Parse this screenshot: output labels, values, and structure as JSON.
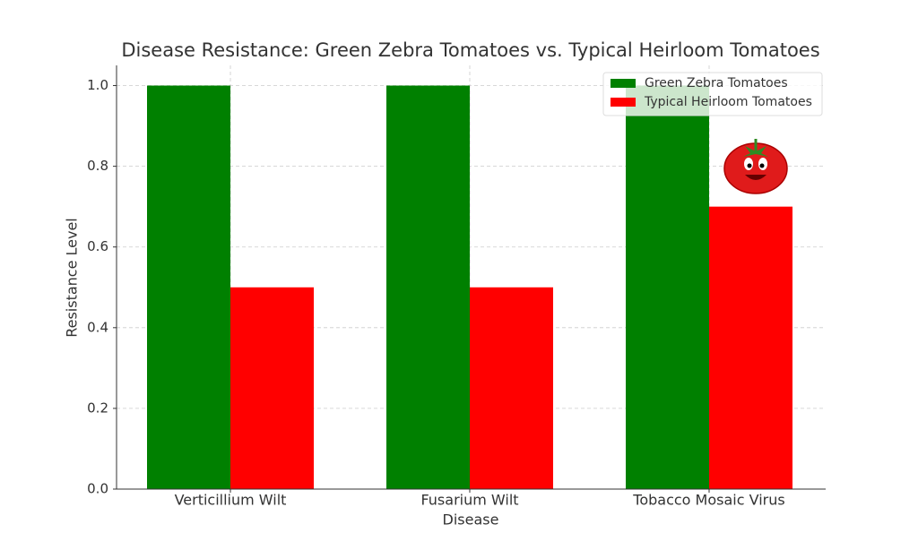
{
  "chart_data": {
    "type": "bar",
    "title": "Disease Resistance: Green Zebra Tomatoes vs. Typical Heirloom Tomatoes",
    "x_label": "Disease",
    "y_label": "Resistance Level",
    "categories": [
      "Verticillium Wilt",
      "Fusarium Wilt",
      "Tobacco Mosaic Virus"
    ],
    "series": [
      {
        "name": "Green Zebra Tomatoes",
        "color": "#008000",
        "values": [
          1.0,
          1.0,
          1.0
        ]
      },
      {
        "name": "Typical Heirloom Tomatoes",
        "color": "#ff0000",
        "values": [
          0.5,
          0.5,
          0.7
        ]
      }
    ],
    "ylim": [
      0,
      1.05
    ],
    "yticks": [
      {
        "value": 0,
        "label": "0.0"
      },
      0.2,
      0.4,
      0.6,
      0.8,
      {
        "value": 1,
        "label": "1.0"
      }
    ],
    "grid": true,
    "legend": "upper right"
  }
}
